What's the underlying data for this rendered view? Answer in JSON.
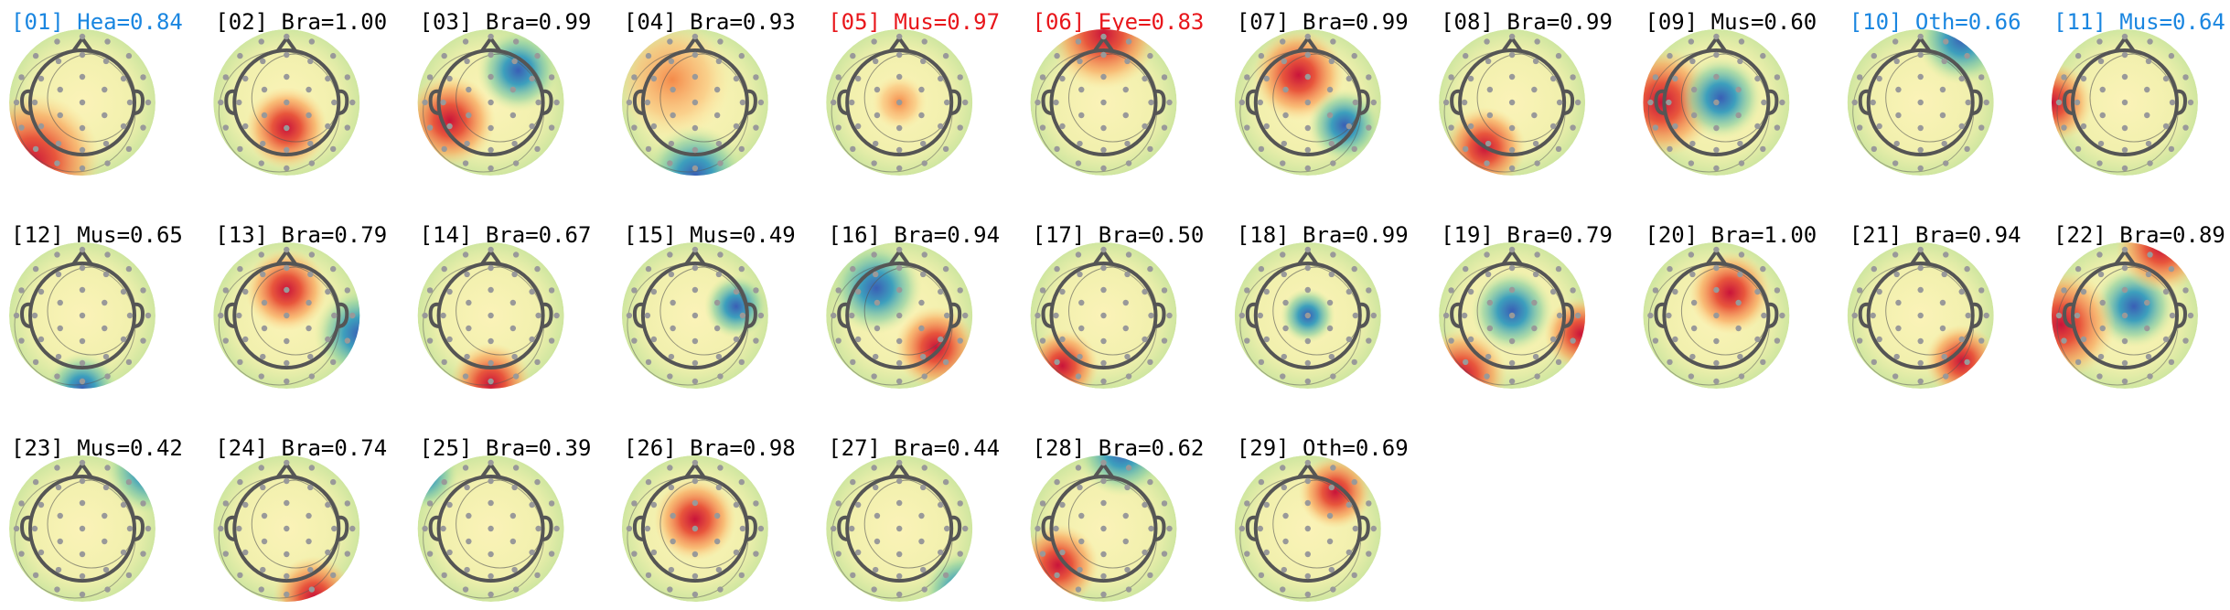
{
  "components": [
    {
      "label": "[01] Hea=0.84",
      "color": "#1a86e0"
    },
    {
      "label": "[02] Bra=1.00",
      "color": "#000000"
    },
    {
      "label": "[03] Bra=0.99",
      "color": "#000000"
    },
    {
      "label": "[04] Bra=0.93",
      "color": "#000000"
    },
    {
      "label": "[05] Mus=0.97",
      "color": "#e8161b"
    },
    {
      "label": "[06] Eye=0.83",
      "color": "#e8161b"
    },
    {
      "label": "[07] Bra=0.99",
      "color": "#000000"
    },
    {
      "label": "[08] Bra=0.99",
      "color": "#000000"
    },
    {
      "label": "[09] Mus=0.60",
      "color": "#000000"
    },
    {
      "label": "[10] Oth=0.66",
      "color": "#1a86e0"
    },
    {
      "label": "[11] Mus=0.64",
      "color": "#1a86e0"
    },
    {
      "label": "[12] Mus=0.65",
      "color": "#000000"
    },
    {
      "label": "[13] Bra=0.79",
      "color": "#000000"
    },
    {
      "label": "[14] Bra=0.67",
      "color": "#000000"
    },
    {
      "label": "[15] Mus=0.49",
      "color": "#000000"
    },
    {
      "label": "[16] Bra=0.94",
      "color": "#000000"
    },
    {
      "label": "[17] Bra=0.50",
      "color": "#000000"
    },
    {
      "label": "[18] Bra=0.99",
      "color": "#000000"
    },
    {
      "label": "[19] Bra=0.79",
      "color": "#000000"
    },
    {
      "label": "[20] Bra=1.00",
      "color": "#000000"
    },
    {
      "label": "[21] Bra=0.94",
      "color": "#000000"
    },
    {
      "label": "[22] Bra=0.89",
      "color": "#000000"
    },
    {
      "label": "[23] Mus=0.42",
      "color": "#000000"
    },
    {
      "label": "[24] Bra=0.74",
      "color": "#000000"
    },
    {
      "label": "[25] Bra=0.39",
      "color": "#000000"
    },
    {
      "label": "[26] Bra=0.98",
      "color": "#000000"
    },
    {
      "label": "[27] Bra=0.44",
      "color": "#000000"
    },
    {
      "label": "[28] Bra=0.62",
      "color": "#000000"
    },
    {
      "label": "[29] Oth=0.69",
      "color": "#000000"
    }
  ]
}
